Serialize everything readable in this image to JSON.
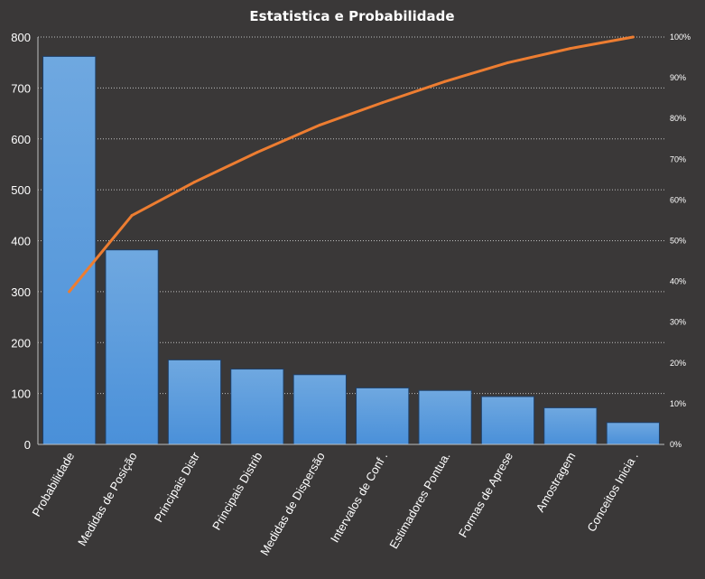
{
  "chart_data": {
    "type": "bar",
    "title": "Estatistica  e Probabilidade",
    "categories": [
      "Probabilidade",
      "Medidas de Posição",
      "Principais Distr",
      "Principais Distrib",
      "Medidas de Dispersão",
      "Intervalos de Conf .",
      "Estimadores Pontua.",
      "Formas de Aprese",
      "Amostragem",
      "Conceitos Inicia ."
    ],
    "series": [
      {
        "type": "bar",
        "axis": "left",
        "values": [
          762,
          382,
          166,
          148,
          137,
          111,
          106,
          94,
          72,
          43
        ]
      },
      {
        "type": "line",
        "axis": "right",
        "values": [
          37.5,
          56.2,
          64.4,
          71.7,
          78.4,
          83.9,
          89.1,
          93.7,
          97.2,
          100
        ]
      }
    ],
    "left_axis": {
      "ylim": [
        0,
        800
      ],
      "ticks": [
        "0",
        "100",
        "200",
        "300",
        "400",
        "500",
        "600",
        "700",
        "800"
      ]
    },
    "right_axis": {
      "ylim": [
        0,
        100
      ],
      "ticks": [
        "0%",
        "10%",
        "20%",
        "30%",
        "40%",
        "50%",
        "60%",
        "70%",
        "80%",
        "90%",
        "100%"
      ]
    },
    "grid": "horizontal dotted",
    "colors": {
      "background": "#3a3838",
      "bar": "#4a90d9",
      "bar_top": "#6fa8e0",
      "line": "#ed7d31",
      "grid": "#bfbfbf",
      "text": "#ffffff"
    }
  }
}
